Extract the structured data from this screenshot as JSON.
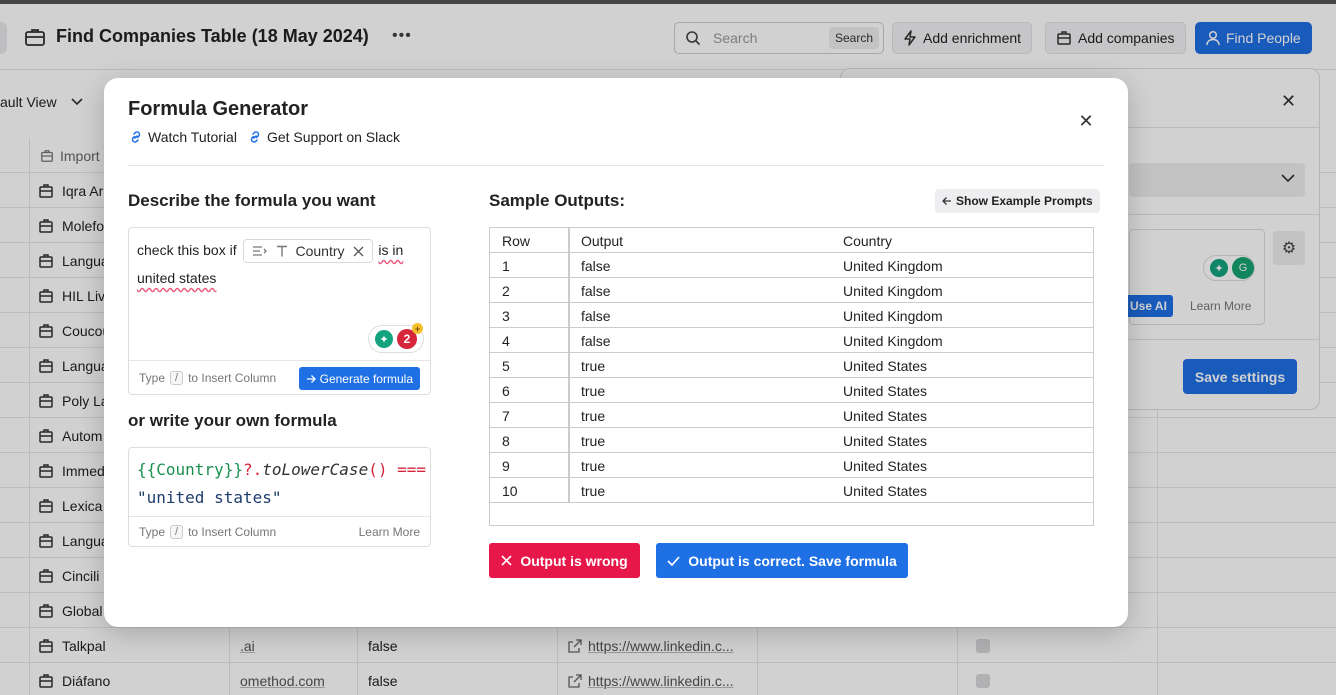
{
  "header": {
    "title": "Find Companies Table (18 May 2024)",
    "more_icon": "more-horizontal-icon",
    "search_placeholder": "Search",
    "search_button": "Search",
    "add_enrichment": "Add enrichment",
    "add_companies": "Add companies",
    "find_people": "Find People"
  },
  "view": {
    "label": "ault View"
  },
  "grid": {
    "header": {
      "name": "Import"
    },
    "rows": [
      {
        "name": "Iqra Ar",
        "domain": "",
        "flag": "",
        "linkedin": ""
      },
      {
        "name": "Molefo",
        "domain": "",
        "flag": "",
        "linkedin": ""
      },
      {
        "name": "Langua",
        "domain": "",
        "flag": "",
        "linkedin": ""
      },
      {
        "name": "HIL Liv",
        "domain": "",
        "flag": "",
        "linkedin": ""
      },
      {
        "name": "Coucou",
        "domain": "",
        "flag": "",
        "linkedin": ""
      },
      {
        "name": "Langua",
        "domain": "",
        "flag": "",
        "linkedin": ""
      },
      {
        "name": "Poly La",
        "domain": "",
        "flag": "",
        "linkedin": ""
      },
      {
        "name": "Autom",
        "domain": "",
        "flag": "",
        "linkedin": ""
      },
      {
        "name": "Immed",
        "domain": "",
        "flag": "",
        "linkedin": ""
      },
      {
        "name": "Lexica",
        "domain": "",
        "flag": "",
        "linkedin": ""
      },
      {
        "name": "Langua",
        "domain": "",
        "flag": "",
        "linkedin": ""
      },
      {
        "name": "Cincili",
        "domain": "",
        "flag": "",
        "linkedin": ""
      },
      {
        "name": "Global",
        "domain": "",
        "flag": "",
        "linkedin": ""
      },
      {
        "name": "Talkpal",
        "domain": ".ai",
        "flag": "false",
        "linkedin": "https://www.linkedin.c..."
      },
      {
        "name": "Diáfano",
        "domain": "omethod.com",
        "flag": "false",
        "linkedin": "https://www.linkedin.c..."
      }
    ]
  },
  "side_panel": {
    "use_ai": "Use AI",
    "learn_more": "Learn More",
    "save_settings": "Save settings"
  },
  "modal": {
    "title": "Formula Generator",
    "watch_tutorial": "Watch Tutorial",
    "get_support": "Get Support on Slack",
    "describe_heading": "Describe the formula you want",
    "prompt_before": "check this box if",
    "prompt_chip": "Country",
    "prompt_after": "is in",
    "prompt_line2": "united states",
    "grammarly_count": "2",
    "type_word": "Type",
    "slash_key": "/",
    "insert_column": "to Insert Column",
    "generate_button": "Generate formula",
    "own_formula_heading": "or write your own formula",
    "formula": {
      "var": "{{Country}}",
      "op1": "?.",
      "fn": "toLowerCase",
      "parens": "()",
      "op2": "===",
      "str": "\"united states\""
    },
    "learn_more": "Learn More",
    "sample_heading": "Sample Outputs:",
    "show_examples": "Show Example Prompts",
    "table": {
      "headers": [
        "Row",
        "Output",
        "Country"
      ],
      "rows": [
        [
          "1",
          "false",
          "United Kingdom"
        ],
        [
          "2",
          "false",
          "United Kingdom"
        ],
        [
          "3",
          "false",
          "United Kingdom"
        ],
        [
          "4",
          "false",
          "United Kingdom"
        ],
        [
          "5",
          "true",
          "United States"
        ],
        [
          "6",
          "true",
          "United States"
        ],
        [
          "7",
          "true",
          "United States"
        ],
        [
          "8",
          "true",
          "United States"
        ],
        [
          "9",
          "true",
          "United States"
        ],
        [
          "10",
          "true",
          "United States"
        ]
      ]
    },
    "wrong_button": "Output is wrong",
    "correct_button": "Output is correct. Save formula"
  }
}
